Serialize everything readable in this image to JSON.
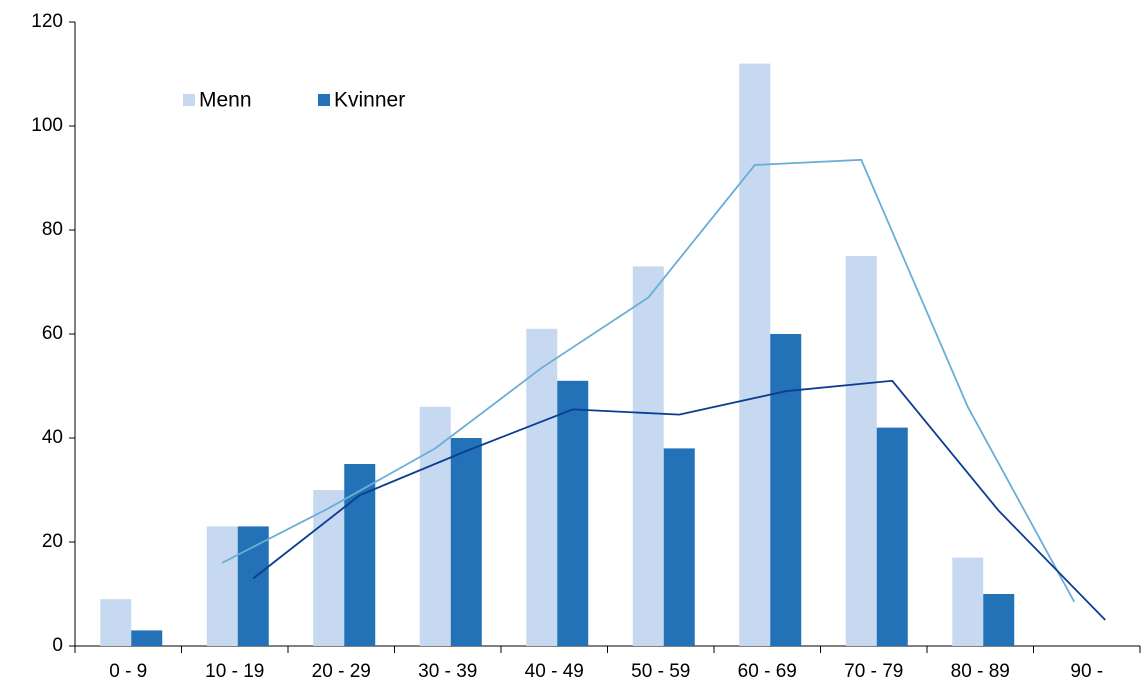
{
  "chart_data": {
    "type": "bar",
    "categories": [
      "0 - 9",
      "10 - 19",
      "20 - 29",
      "30 - 39",
      "40 - 49",
      "50 - 59",
      "60 - 69",
      "70 - 79",
      "80 - 89",
      "90 -"
    ],
    "series": [
      {
        "name": "Menn",
        "color": "#c6d9f0",
        "values": [
          9,
          23,
          30,
          46,
          61,
          73,
          112,
          75,
          17,
          0
        ]
      },
      {
        "name": "Kvinner",
        "color": "#2372b8",
        "values": [
          3,
          23,
          35,
          40,
          51,
          38,
          60,
          42,
          10,
          0
        ]
      }
    ],
    "trendlines": [
      {
        "color": "#6aaed6",
        "values": [
          null,
          16,
          26.5,
          38,
          53.5,
          67,
          92.5,
          93.5,
          46,
          8.5
        ]
      },
      {
        "color": "#0b3d91",
        "values": [
          null,
          13,
          29,
          37.5,
          45.5,
          44.5,
          49,
          51,
          26,
          5
        ]
      }
    ],
    "ylim": [
      0,
      120
    ],
    "yticks": [
      0,
      20,
      40,
      60,
      80,
      100,
      120
    ],
    "grid": false,
    "legend": "top-left"
  }
}
